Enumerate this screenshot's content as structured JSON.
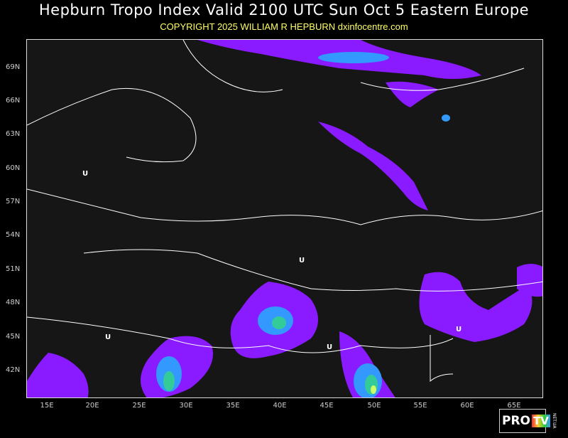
{
  "header": {
    "title": "Hepburn Tropo Index Valid 2100 UTC Sun Oct 5 Eastern Europe",
    "copyright": "COPYRIGHT 2025   WILLIAM R HEPBURN   dxinfocentre.com"
  },
  "map": {
    "lat_labels": [
      "69N",
      "66N",
      "63N",
      "60N",
      "57N",
      "54N",
      "51N",
      "48N",
      "45N",
      "42N"
    ],
    "lon_labels": [
      "15E",
      "20E",
      "25E",
      "30E",
      "35E",
      "40E",
      "45E",
      "50E",
      "55E",
      "60E",
      "65E"
    ],
    "markers": [
      "U",
      "U",
      "U",
      "U",
      "U"
    ],
    "colors": {
      "background": "#161616",
      "borders": "#ffffff",
      "index_low": "#8a1aff",
      "index_mid": "#3399ff",
      "index_high": "#33cc99",
      "index_top": "#ccff66"
    }
  },
  "watermark": {
    "brand": "PRO",
    "brand2": "TV",
    "suffix": "NET.UA"
  }
}
